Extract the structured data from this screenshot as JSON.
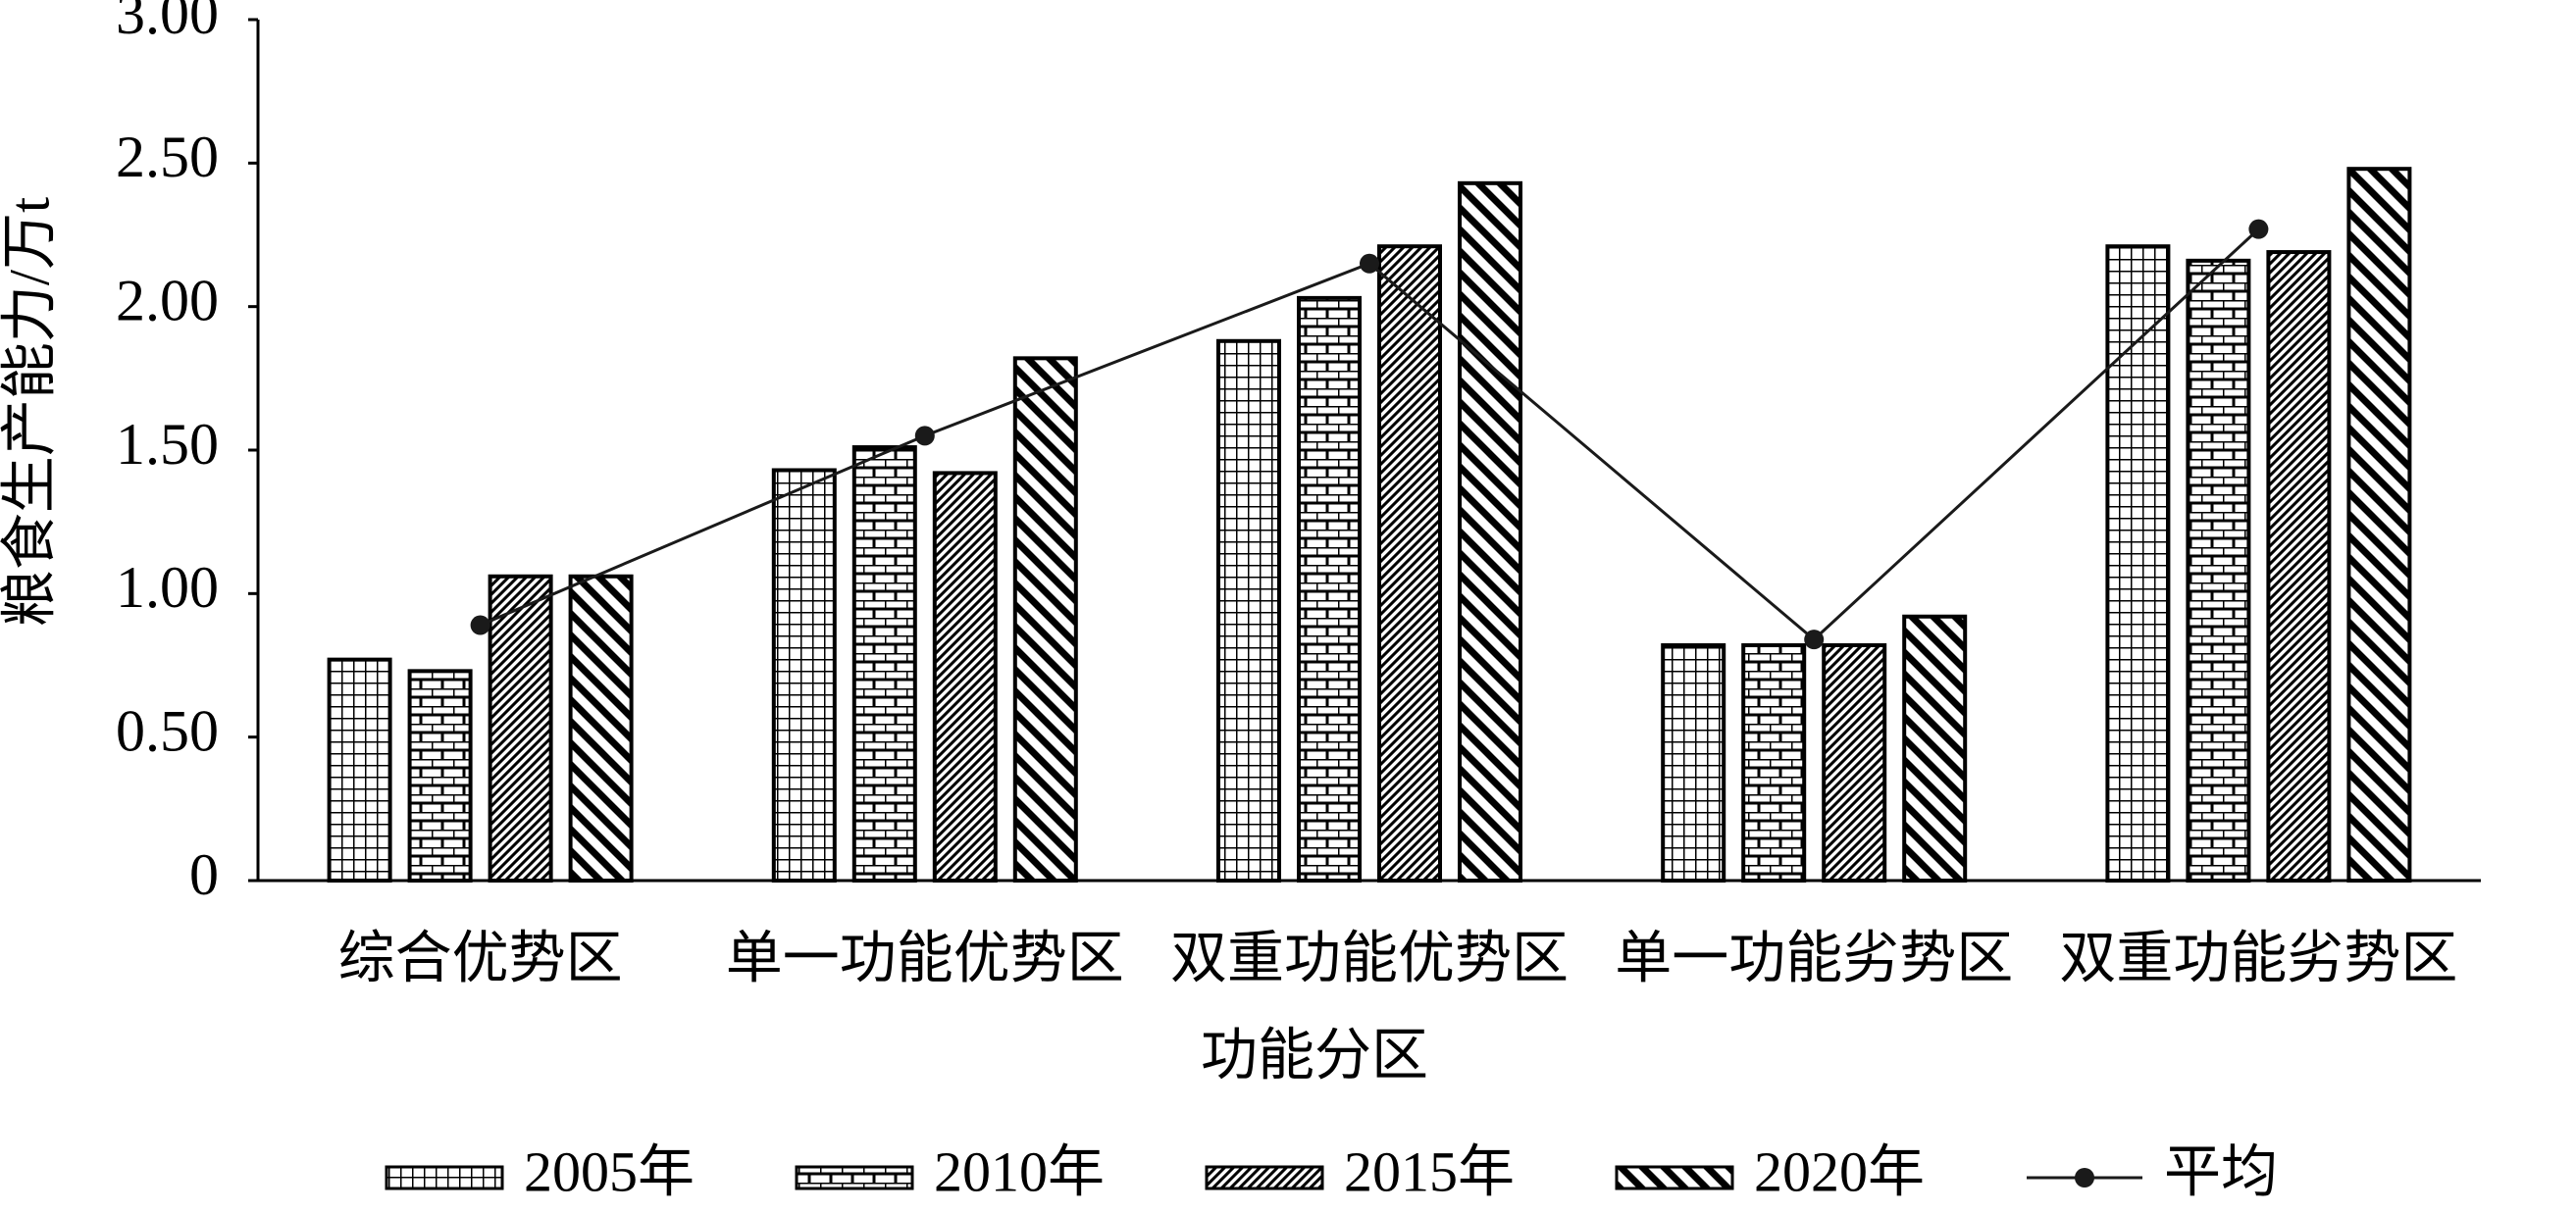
{
  "chart_data": {
    "type": "bar",
    "x_label": "功能分区",
    "y_label": "粮食生产能力/万t",
    "categories": [
      "综合优势区",
      "单一功能优势区",
      "双重功能优势区",
      "单一功能劣势区",
      "双重功能劣势区"
    ],
    "series": [
      {
        "name": "2005年",
        "color": "#000000",
        "pattern": "grid",
        "values": [
          0.77,
          1.43,
          1.88,
          0.82,
          2.21
        ]
      },
      {
        "name": "2010年",
        "color": "#000000",
        "pattern": "brick",
        "values": [
          0.73,
          1.51,
          2.03,
          0.82,
          2.16
        ]
      },
      {
        "name": "2015年",
        "color": "#000000",
        "pattern": "fine-hatch",
        "values": [
          1.06,
          1.42,
          2.21,
          0.82,
          2.19
        ]
      },
      {
        "name": "2020年",
        "color": "#000000",
        "pattern": "wide-hatch",
        "values": [
          1.06,
          1.82,
          2.43,
          0.92,
          2.48
        ]
      },
      {
        "name": "平均",
        "type": "line",
        "color": "#1a1a1a",
        "values": [
          0.89,
          1.55,
          2.15,
          0.84,
          2.27
        ]
      }
    ],
    "ylim": [
      0,
      3
    ],
    "yticks": [
      0,
      {
        "value": 0.5,
        "label": "0.50"
      },
      {
        "value": 1,
        "label": "1.00"
      },
      {
        "value": 1.5,
        "label": "1.50"
      },
      {
        "value": 2,
        "label": "2.00"
      },
      {
        "value": 2.5,
        "label": "2.50"
      },
      {
        "value": 3,
        "label": "3.00"
      }
    ],
    "grid": false,
    "legend": "bottom"
  }
}
